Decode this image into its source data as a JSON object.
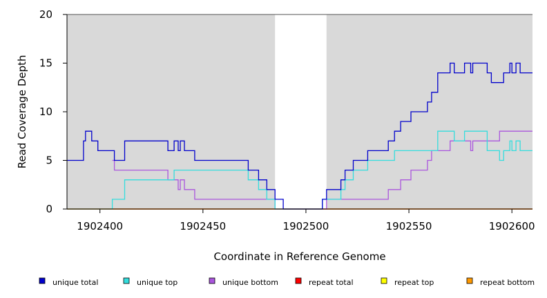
{
  "chart_data": {
    "type": "line",
    "title": "",
    "xlabel": "Coordinate in Reference Genome",
    "ylabel": "Read Coverage Depth",
    "xlim": [
      1902384,
      1902610
    ],
    "ylim": [
      0,
      20
    ],
    "xticks": [
      1902400,
      1902450,
      1902500,
      1902550,
      1902600
    ],
    "yticks": [
      0,
      5,
      10,
      15,
      20
    ],
    "grid": false,
    "legend": "bottom",
    "shaded_regions": [
      {
        "x": [
          1902384,
          1902485
        ],
        "color": "#d9d9d9"
      },
      {
        "x": [
          1902510,
          1902610
        ],
        "color": "#d9d9d9"
      }
    ],
    "series": [
      {
        "name": "unique total",
        "color": "#0000cc",
        "steps": [
          [
            1902384,
            5
          ],
          [
            1902392,
            7
          ],
          [
            1902393,
            8
          ],
          [
            1902396,
            7
          ],
          [
            1902399,
            6
          ],
          [
            1902407,
            5
          ],
          [
            1902412,
            7
          ],
          [
            1902433,
            6
          ],
          [
            1902436,
            7
          ],
          [
            1902438,
            6
          ],
          [
            1902439,
            7
          ],
          [
            1902441,
            6
          ],
          [
            1902446,
            5
          ],
          [
            1902472,
            4
          ],
          [
            1902477,
            3
          ],
          [
            1902481,
            2
          ],
          [
            1902485,
            1
          ],
          [
            1902489,
            0
          ],
          [
            1902508,
            1
          ],
          [
            1902510,
            2
          ],
          [
            1902517,
            3
          ],
          [
            1902519,
            4
          ],
          [
            1902523,
            5
          ],
          [
            1902530,
            6
          ],
          [
            1902540,
            7
          ],
          [
            1902543,
            8
          ],
          [
            1902546,
            9
          ],
          [
            1902551,
            10
          ],
          [
            1902559,
            11
          ],
          [
            1902561,
            12
          ],
          [
            1902564,
            14
          ],
          [
            1902570,
            15
          ],
          [
            1902572,
            14
          ],
          [
            1902577,
            15
          ],
          [
            1902580,
            14
          ],
          [
            1902581,
            15
          ],
          [
            1902588,
            14
          ],
          [
            1902590,
            13
          ],
          [
            1902596,
            14
          ],
          [
            1902599,
            15
          ],
          [
            1902600,
            14
          ],
          [
            1902602,
            15
          ],
          [
            1902604,
            14
          ],
          [
            1902610,
            14
          ]
        ]
      },
      {
        "name": "unique top",
        "color": "#33dddd",
        "steps": [
          [
            1902384,
            0
          ],
          [
            1902406,
            1
          ],
          [
            1902412,
            3
          ],
          [
            1902436,
            4
          ],
          [
            1902472,
            3
          ],
          [
            1902477,
            2
          ],
          [
            1902481,
            1
          ],
          [
            1902485,
            0
          ],
          [
            1902508,
            1
          ],
          [
            1902517,
            2
          ],
          [
            1902519,
            3
          ],
          [
            1902523,
            4
          ],
          [
            1902530,
            5
          ],
          [
            1902543,
            6
          ],
          [
            1902564,
            8
          ],
          [
            1902572,
            7
          ],
          [
            1902577,
            8
          ],
          [
            1902588,
            6
          ],
          [
            1902594,
            5
          ],
          [
            1902596,
            6
          ],
          [
            1902599,
            7
          ],
          [
            1902600,
            6
          ],
          [
            1902602,
            7
          ],
          [
            1902604,
            6
          ],
          [
            1902610,
            6
          ]
        ]
      },
      {
        "name": "unique bottom",
        "color": "#aa55dd",
        "steps": [
          [
            1902406,
            5
          ],
          [
            1902407,
            4
          ],
          [
            1902433,
            3
          ],
          [
            1902438,
            2
          ],
          [
            1902439,
            3
          ],
          [
            1902441,
            2
          ],
          [
            1902446,
            1
          ],
          [
            1902485,
            0
          ],
          [
            1902510,
            1
          ],
          [
            1902540,
            2
          ],
          [
            1902546,
            3
          ],
          [
            1902551,
            4
          ],
          [
            1902559,
            5
          ],
          [
            1902561,
            6
          ],
          [
            1902570,
            7
          ],
          [
            1902580,
            6
          ],
          [
            1902581,
            7
          ],
          [
            1902594,
            8
          ],
          [
            1902610,
            8
          ]
        ]
      },
      {
        "name": "repeat total",
        "color": "#ff0000",
        "steps": [
          [
            1902384,
            0
          ],
          [
            1902610,
            0
          ]
        ]
      },
      {
        "name": "repeat top",
        "color": "#ffff00",
        "steps": [
          [
            1902384,
            0
          ],
          [
            1902610,
            0
          ]
        ]
      },
      {
        "name": "repeat bottom",
        "color": "#ff9900",
        "steps": [
          [
            1902384,
            0
          ],
          [
            1902610,
            0
          ]
        ]
      }
    ]
  }
}
